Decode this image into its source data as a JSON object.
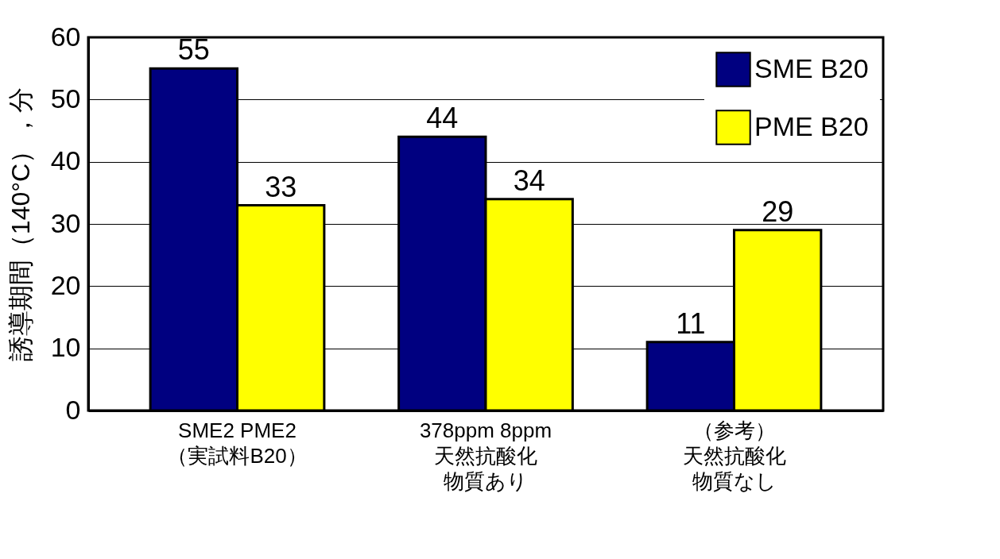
{
  "chart_data": {
    "type": "bar",
    "ylabel": "誘導期間（140°C），分",
    "categories": [
      "SME2 PME2\n（実試料B20）",
      "378ppm  8ppm\n天然抗酸化物質あり",
      "（参考）天然抗酸化物質なし"
    ],
    "series": [
      {
        "name": "SME B20",
        "color": "#000080",
        "values": [
          55,
          44,
          11
        ]
      },
      {
        "name": "PME B20",
        "color": "#ffff00",
        "values": [
          33,
          34,
          29
        ]
      }
    ],
    "ylim": [
      0,
      60
    ],
    "yticks": [
      0,
      10,
      20,
      30,
      40,
      50,
      60
    ],
    "grid": "y",
    "legend": "top right",
    "data_labels": true
  }
}
